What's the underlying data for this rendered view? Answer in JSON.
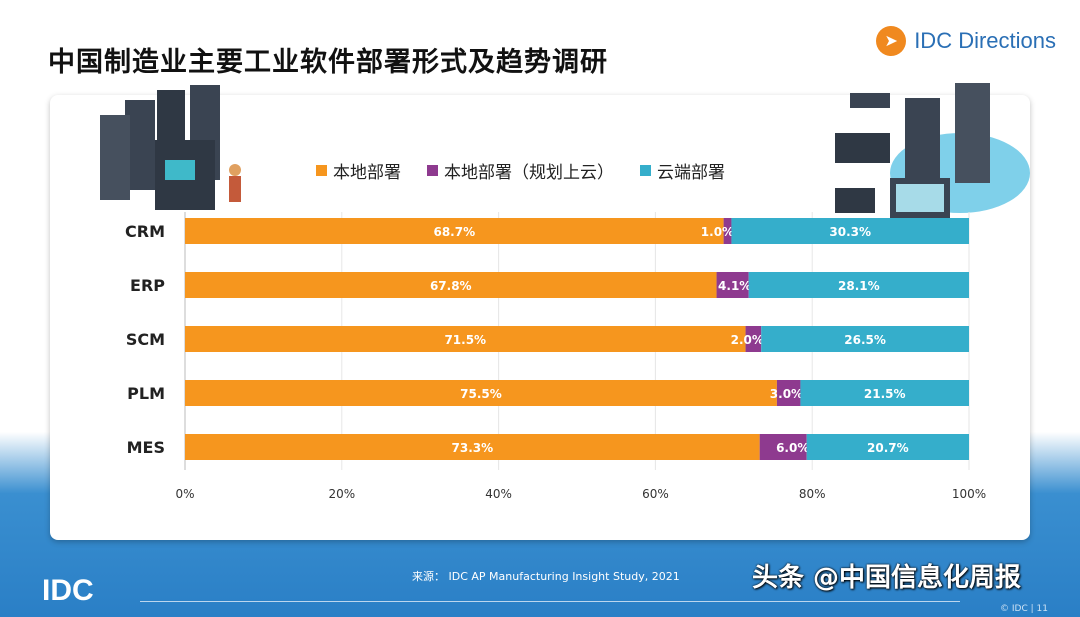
{
  "header": {
    "title": "中国制造业主要工业软件部署形式及趋势调研",
    "brand": "IDC Directions"
  },
  "chart_data": {
    "type": "bar",
    "orientation": "horizontal",
    "stacked": true,
    "categories": [
      "CRM",
      "ERP",
      "SCM",
      "PLM",
      "MES"
    ],
    "series": [
      {
        "name": "本地部署",
        "color": "#f6961e",
        "values": [
          68.7,
          67.8,
          71.5,
          75.5,
          73.3
        ]
      },
      {
        "name": "本地部署（规划上云）",
        "color": "#8e3a8f",
        "values": [
          1.0,
          4.1,
          2.0,
          3.0,
          6.0
        ]
      },
      {
        "name": "云端部署",
        "color": "#35aecb",
        "values": [
          30.3,
          28.1,
          26.5,
          21.5,
          20.7
        ]
      }
    ],
    "xlim": [
      0,
      100
    ],
    "xticks": [
      "0%",
      "20%",
      "40%",
      "60%",
      "80%",
      "100%"
    ],
    "grid": true,
    "legend": "top"
  },
  "footer": {
    "source": "来源： IDC AP Manufacturing Insight Study, 2021",
    "logo": "IDC",
    "watermark": "头条 @中国信息化周报",
    "page": "© IDC |  11"
  }
}
